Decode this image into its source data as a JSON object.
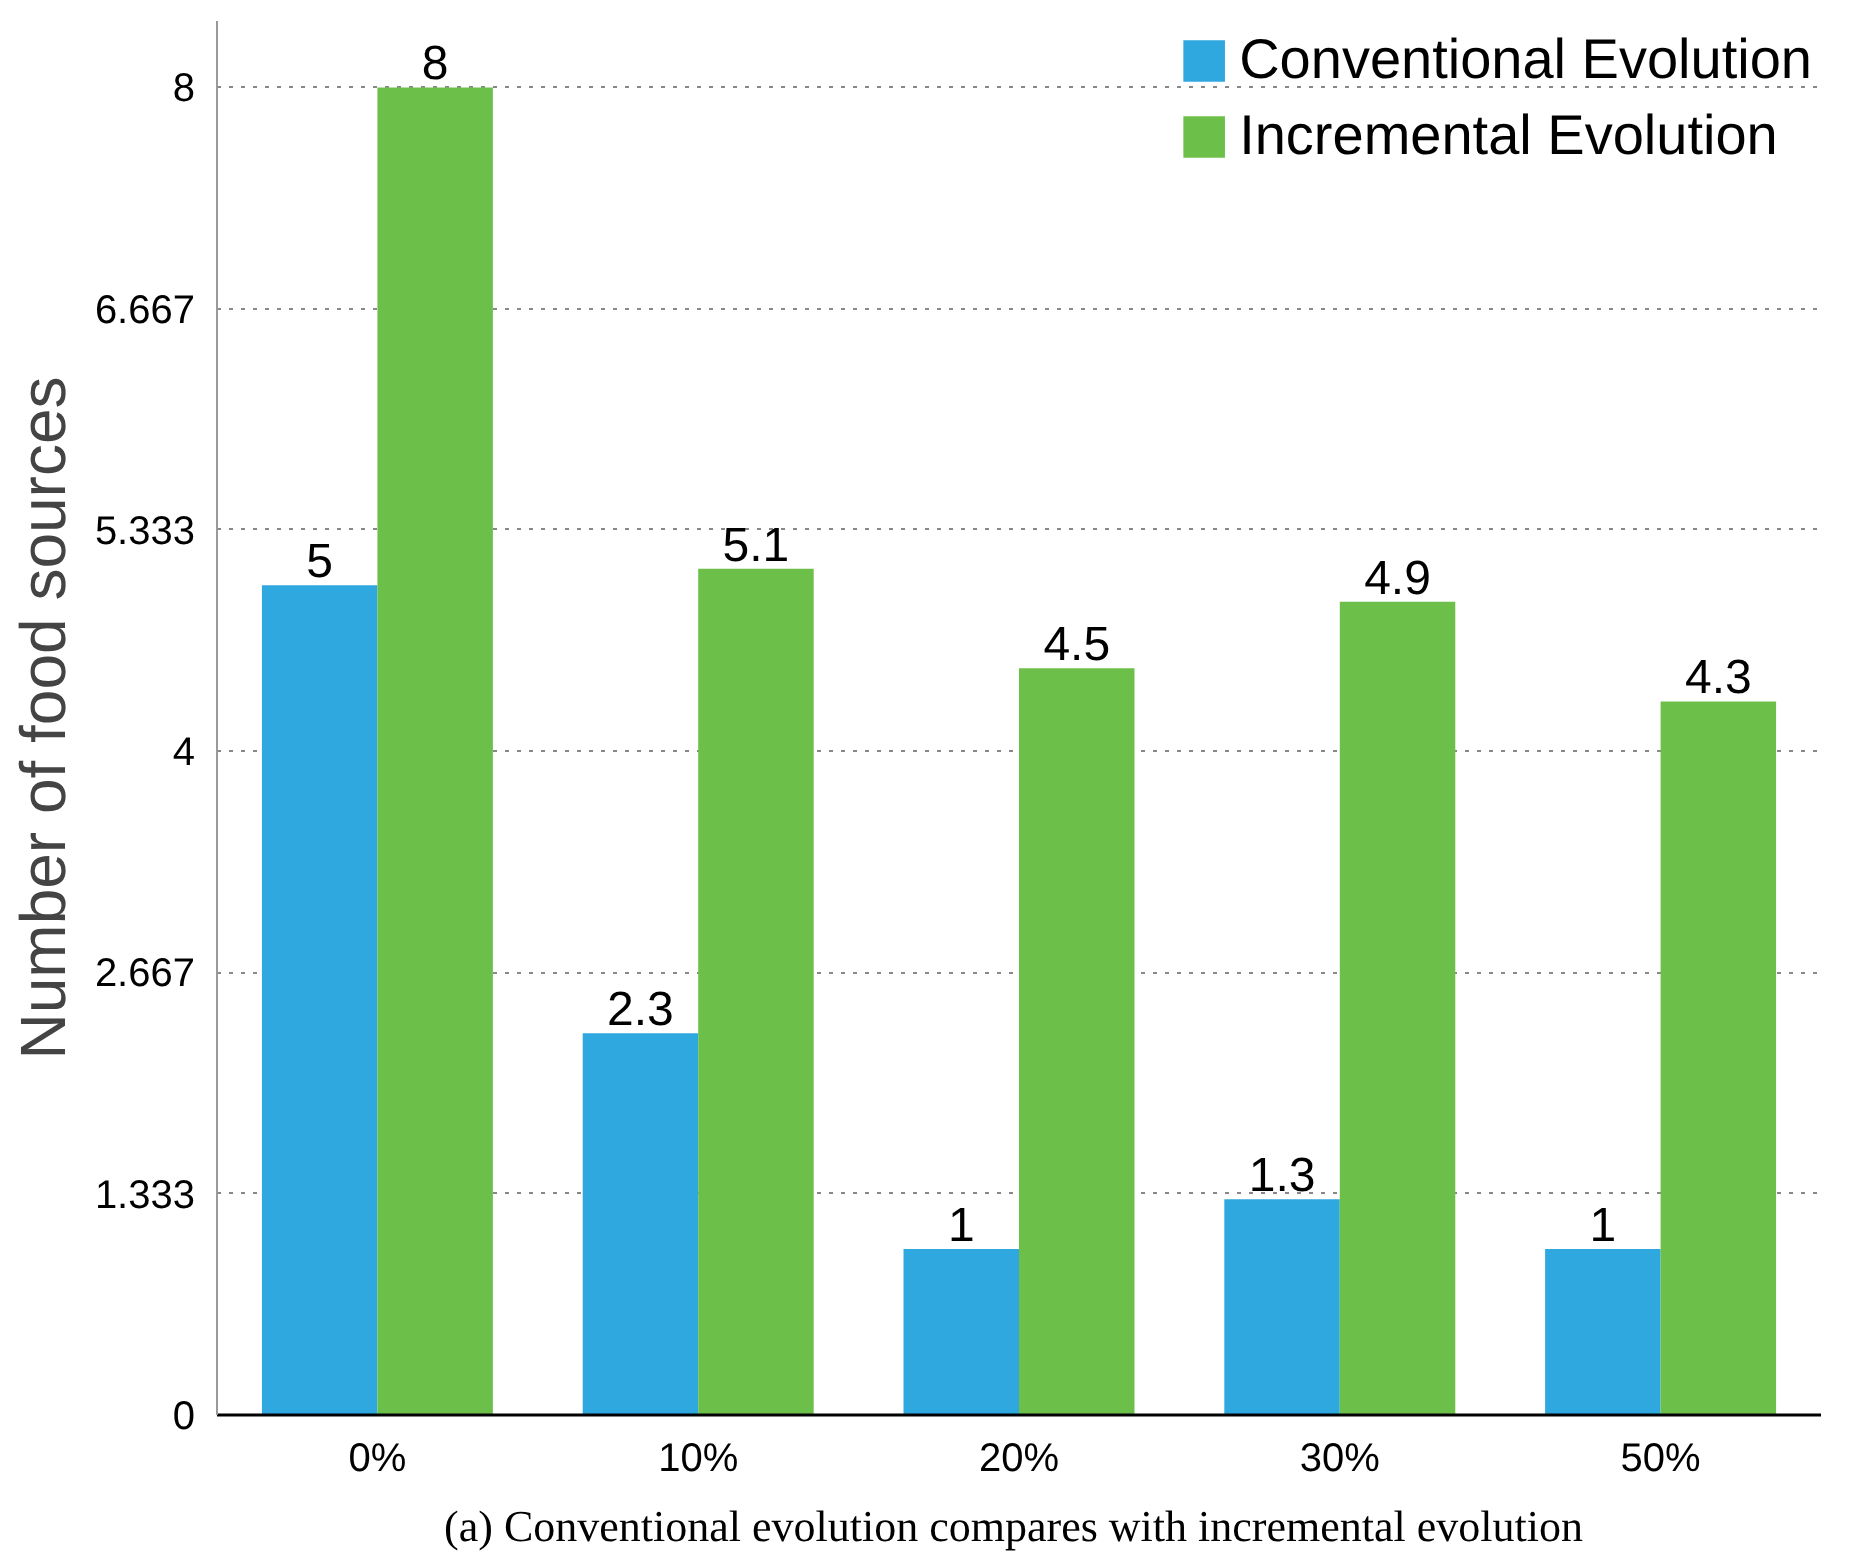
{
  "chart_data": {
    "type": "bar",
    "ylabel": "Number of food sources",
    "categories": [
      "0%",
      "10%",
      "20%",
      "30%",
      "50%"
    ],
    "series": [
      {
        "name": "Conventional Evolution",
        "color": "#2fa7df",
        "values": [
          5,
          2.3,
          1,
          1.3,
          1
        ]
      },
      {
        "name": "Incremental Evolution",
        "color": "#6cc04a",
        "values": [
          8,
          5.1,
          4.5,
          4.9,
          4.3
        ]
      }
    ],
    "ylim": [
      0,
      8.4
    ],
    "yticks": [
      0,
      1.333,
      2.667,
      4,
      5.333,
      6.667,
      8
    ],
    "grid": "y",
    "legend": "top right",
    "data_labels": true,
    "annotations": [
      "(a)  Conventional evolution compares with incremental evolution"
    ]
  }
}
